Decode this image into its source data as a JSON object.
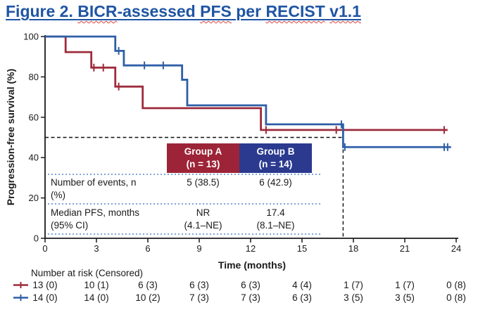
{
  "title": {
    "segments": [
      {
        "text": "Figure 2. ",
        "misspelled": false
      },
      {
        "text": "BICR",
        "misspelled": true
      },
      {
        "text": "-assessed ",
        "misspelled": false
      },
      {
        "text": "PFS",
        "misspelled": true
      },
      {
        "text": " per ",
        "misspelled": false
      },
      {
        "text": "RECIST",
        "misspelled": true
      },
      {
        "text": " ",
        "misspelled": false
      },
      {
        "text": "v1.1",
        "misspelled": true
      }
    ],
    "color": "#1f55a4"
  },
  "chart_data": {
    "type": "line",
    "subtype": "kaplan-meier",
    "xlabel": "Time (months)",
    "ylabel": "Progression-free survival (%)",
    "xlim": [
      0,
      24
    ],
    "ylim": [
      0,
      100
    ],
    "xticks": [
      0,
      3,
      6,
      9,
      12,
      15,
      18,
      21,
      24
    ],
    "yticks": [
      0,
      20,
      40,
      60,
      80,
      100
    ],
    "grid": false,
    "median_reference": {
      "x": 17.4,
      "y": 50
    },
    "series": [
      {
        "name": "Group A",
        "n": 13,
        "color": "#9e2b3c",
        "steps": [
          [
            0,
            100
          ],
          [
            1.2,
            100
          ],
          [
            1.2,
            92.3
          ],
          [
            2.7,
            92.3
          ],
          [
            2.7,
            84.6
          ],
          [
            4.1,
            84.6
          ],
          [
            4.1,
            75.2
          ],
          [
            5.7,
            75.2
          ],
          [
            5.7,
            64.5
          ],
          [
            12.6,
            64.5
          ],
          [
            12.6,
            53.7
          ],
          [
            23.5,
            53.7
          ]
        ],
        "censors": [
          [
            2.85,
            84.6
          ],
          [
            3.4,
            84.6
          ],
          [
            4.3,
            75.2
          ],
          [
            12.9,
            53.7
          ],
          [
            17.0,
            53.7
          ],
          [
            23.3,
            53.7
          ]
        ]
      },
      {
        "name": "Group B",
        "n": 14,
        "color": "#2e5fa7",
        "steps": [
          [
            0,
            100
          ],
          [
            4.1,
            100
          ],
          [
            4.1,
            92.9
          ],
          [
            4.6,
            92.9
          ],
          [
            4.6,
            85.7
          ],
          [
            8.0,
            85.7
          ],
          [
            8.0,
            78.6
          ],
          [
            8.3,
            78.6
          ],
          [
            8.3,
            65.9
          ],
          [
            12.9,
            65.9
          ],
          [
            12.9,
            56.5
          ],
          [
            17.4,
            56.5
          ],
          [
            17.4,
            45.2
          ],
          [
            23.7,
            45.2
          ]
        ],
        "censors": [
          [
            4.3,
            92.9
          ],
          [
            5.8,
            85.7
          ],
          [
            6.9,
            85.7
          ],
          [
            17.3,
            56.5
          ],
          [
            17.5,
            45.2
          ],
          [
            23.3,
            45.2
          ],
          [
            23.5,
            45.2
          ]
        ]
      }
    ],
    "inset_table": {
      "columns": [
        {
          "line1": "Group A",
          "line2": "(n = 13)",
          "bg": "#9d2438"
        },
        {
          "line1": "Group B",
          "line2": "(n = 14)",
          "bg": "#2b3a8f"
        }
      ],
      "rows": [
        {
          "label1": "Number of events, n",
          "label2": "(%)",
          "cellA1": "",
          "cellA2": "5 (38.5)",
          "cellB1": "",
          "cellB2": "6 (42.9)"
        },
        {
          "label1": "Median PFS, months",
          "label2": "(95% CI)",
          "cellA1": "NR",
          "cellA2": "(4.1–NE)",
          "cellB1": "17.4",
          "cellB2": "(8.1–NE)"
        }
      ]
    },
    "risk_table": {
      "label": "Number at risk (Censored)",
      "times": [
        0,
        3,
        6,
        9,
        12,
        15,
        18,
        21,
        24
      ],
      "rows": [
        {
          "name": "Group A",
          "color": "#9e2b3c",
          "values": [
            "13 (0)",
            "10 (1)",
            "6 (3)",
            "6 (3)",
            "6 (3)",
            "4 (4)",
            "1 (7)",
            "1 (7)",
            "0 (8)"
          ]
        },
        {
          "name": "Group B",
          "color": "#2e5fa7",
          "values": [
            "14 (0)",
            "14 (0)",
            "10 (2)",
            "7 (3)",
            "7 (3)",
            "6 (3)",
            "3 (5)",
            "3 (5)",
            "0 (8)"
          ]
        }
      ]
    }
  }
}
